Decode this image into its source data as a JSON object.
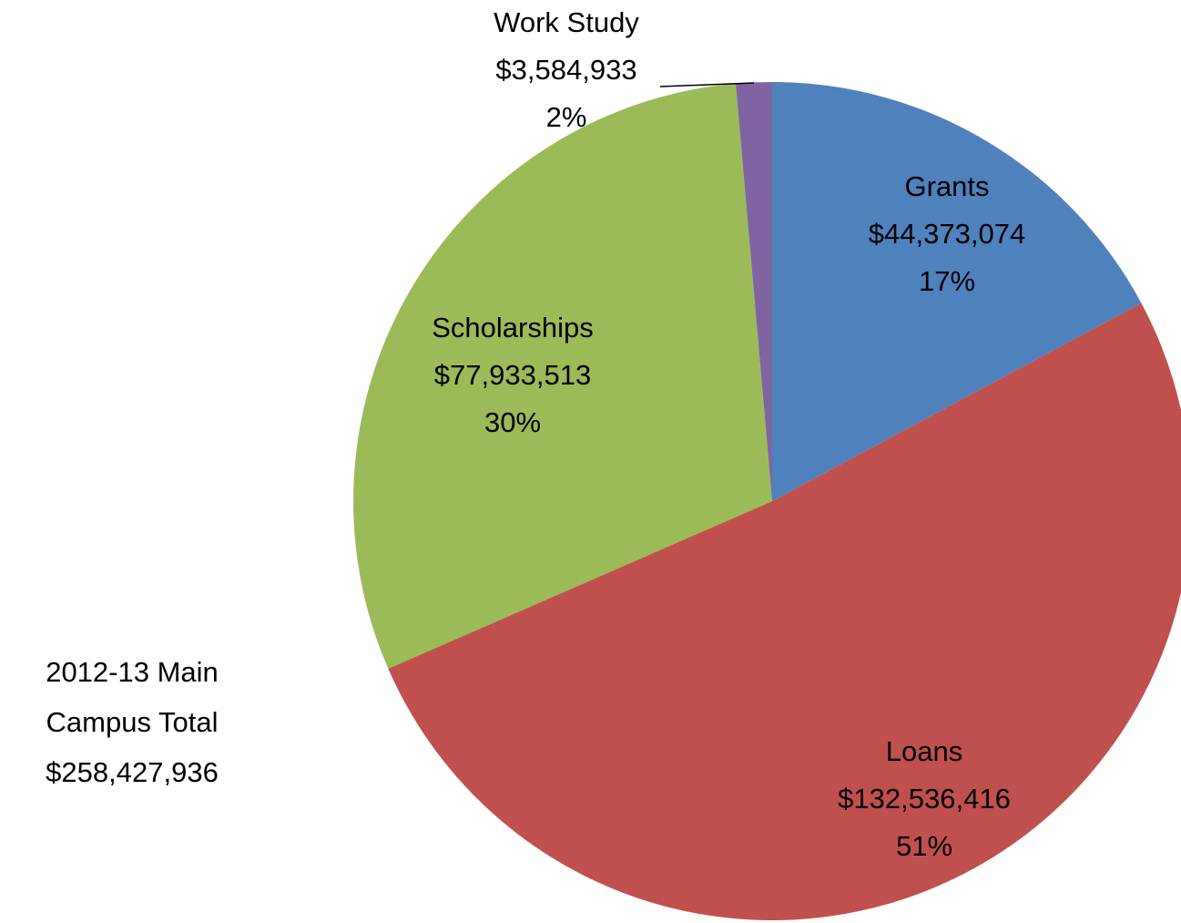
{
  "chart_data": {
    "type": "pie",
    "categories": [
      "Grants",
      "Loans",
      "Scholarships",
      "Work Study"
    ],
    "values": [
      44373074,
      132536416,
      77933513,
      3584933
    ],
    "value_labels": [
      "$44,373,074",
      "$132,536,416",
      "$77,933,513",
      "$3,584,933"
    ],
    "percent_labels": [
      "17%",
      "51%",
      "30%",
      "2%"
    ],
    "colors": [
      "#4F81BD",
      "#C0504D",
      "#9BBB59",
      "#8064A2"
    ],
    "annotation": [
      "2012-13 Main",
      "Campus Total",
      "$258,427,936"
    ]
  }
}
